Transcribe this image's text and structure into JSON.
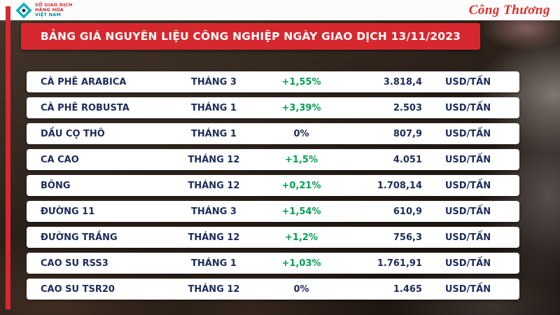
{
  "chart_data": {
    "type": "table",
    "title": "BẢNG GIÁ NGUYÊN LIỆU CÔNG NGHIỆP NGÀY GIAO DỊCH 13/11/2023",
    "rows": [
      {
        "name": "CÀ PHÊ ARABICA",
        "month": "THÁNG 3",
        "change": "+1,55%",
        "price": "3.818,4",
        "unit": "USD/TẤN"
      },
      {
        "name": "CÀ PHÊ ROBUSTA",
        "month": "THÁNG 1",
        "change": "+3,39%",
        "price": "2.503",
        "unit": "USD/TẤN"
      },
      {
        "name": "DẦU CỌ THÔ",
        "month": "THÁNG 1",
        "change": "0%",
        "price": "807,9",
        "unit": "USD/TẤN"
      },
      {
        "name": "CA CAO",
        "month": "THÁNG 12",
        "change": "+1,5%",
        "price": "4.051",
        "unit": "USD/TẤN"
      },
      {
        "name": "BÔNG",
        "month": "THÁNG 12",
        "change": "+0,21%",
        "price": "1.708,14",
        "unit": "USD/TẤN"
      },
      {
        "name": "ĐƯỜNG 11",
        "month": "THÁNG 3",
        "change": "+1,54%",
        "price": "610,9",
        "unit": "USD/TẤN"
      },
      {
        "name": "ĐƯỜNG TRẮNG",
        "month": "THÁNG 12",
        "change": "+1,2%",
        "price": "756,3",
        "unit": "USD/TẤN"
      },
      {
        "name": "CAO SU RSS3",
        "month": "THÁNG 1",
        "change": "+1,03%",
        "price": "1.761,91",
        "unit": "USD/TẤN"
      },
      {
        "name": "CAO SU TSR20",
        "month": "THÁNG 12",
        "change": "0%",
        "price": "1.465",
        "unit": "USD/TẤN"
      }
    ]
  },
  "logos": {
    "mxv": [
      "SỞ GIAO DỊCH",
      "HÀNG HÓA",
      "VIỆT NAM"
    ],
    "brand": "Công Thương"
  },
  "colors": {
    "banner_red": "#d7282f",
    "text_navy": "#1c2b5c",
    "positive_green": "#00a150",
    "mxv_teal": "#00b2bc"
  }
}
